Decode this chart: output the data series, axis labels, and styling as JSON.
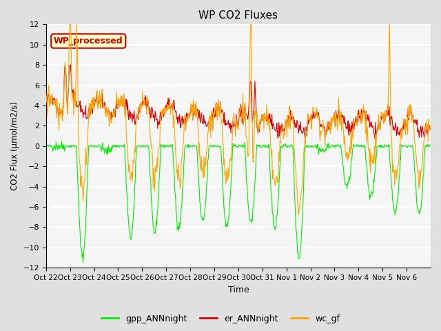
{
  "title": "WP CO2 Fluxes",
  "xlabel": "Time",
  "ylabel": "CO2 Flux (μmol/m2/s)",
  "ylim": [
    -12,
    12
  ],
  "yticks": [
    -12,
    -10,
    -8,
    -6,
    -4,
    -2,
    0,
    2,
    4,
    6,
    8,
    10,
    12
  ],
  "xtick_labels": [
    "Oct 22",
    "Oct 23",
    "Oct 24",
    "Oct 25",
    "Oct 26",
    "Oct 27",
    "Oct 28",
    "Oct 29",
    "Oct 30",
    "Oct 31",
    "Nov 1",
    "Nov 2",
    "Nov 3",
    "Nov 4",
    "Nov 5",
    "Nov 6"
  ],
  "annotation_text": "WP_processed",
  "annotation_bg": "#ffffcc",
  "annotation_border": "#cc0000",
  "annotation_text_color": "#cc0000",
  "color_gpp": "#00ee00",
  "color_er": "#dd0000",
  "color_wc": "#ffa500",
  "bg_color": "#e0e0e0",
  "plot_bg": "#f5f5f5",
  "grid_color": "white",
  "legend_gpp": "gpp_ANNnight",
  "legend_er": "er_ANNnight",
  "legend_wc": "wc_gf",
  "n_days": 16,
  "pts_per_day": 48,
  "seed": 42
}
